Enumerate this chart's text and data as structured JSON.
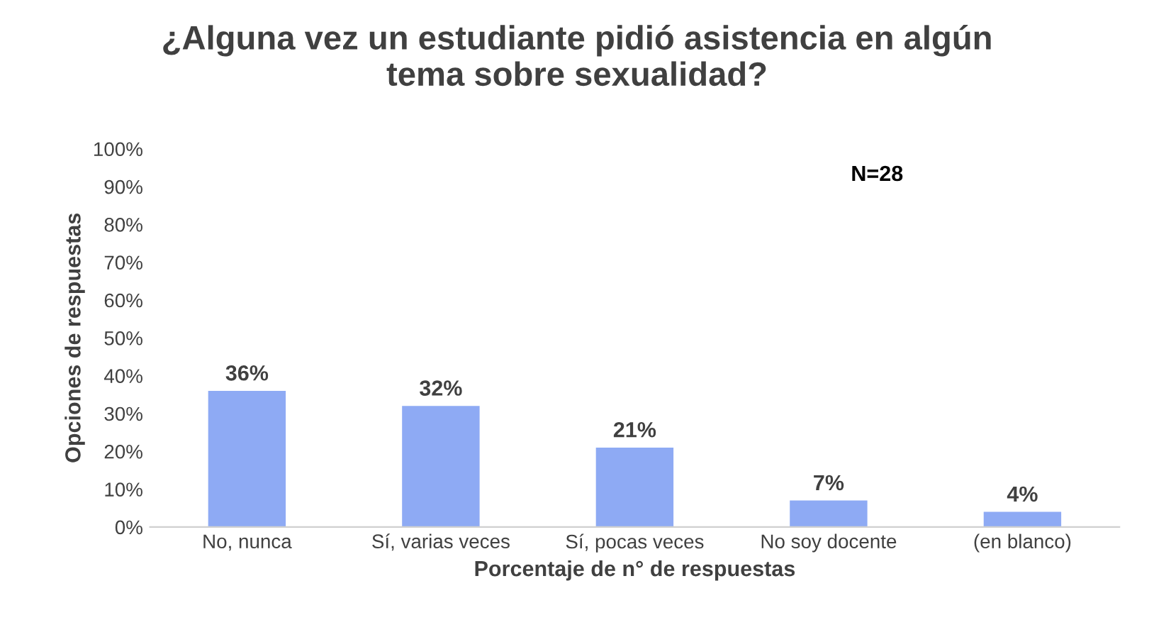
{
  "chart_data": {
    "type": "bar",
    "title": "¿Alguna vez un estudiante pidió asistencia en algún\ntema sobre sexualidad?",
    "xlabel": "Porcentaje de n° de respuestas",
    "ylabel": "Opciones de respuestas",
    "categories": [
      "No, nunca",
      "Sí, varias veces",
      "Sí, pocas veces",
      "No soy docente",
      "(en blanco)"
    ],
    "values": [
      36,
      32,
      21,
      7,
      4
    ],
    "value_labels": [
      "36%",
      "32%",
      "21%",
      "7%",
      "4%"
    ],
    "color": "#8eaaf4",
    "ylim": [
      0,
      100
    ],
    "yticks": [
      {
        "value": 0,
        "label": "0%"
      },
      {
        "value": 10,
        "label": "10%"
      },
      {
        "value": 20,
        "label": "20%"
      },
      {
        "value": 30,
        "label": "30%"
      },
      {
        "value": 40,
        "label": "40%"
      },
      {
        "value": 50,
        "label": "50%"
      },
      {
        "value": 60,
        "label": "60%"
      },
      {
        "value": 70,
        "label": "70%"
      },
      {
        "value": 80,
        "label": "80%"
      },
      {
        "value": 90,
        "label": "90%"
      },
      {
        "value": 100,
        "label": "100%"
      }
    ],
    "annotations": [
      "N=28"
    ],
    "grid": false
  }
}
